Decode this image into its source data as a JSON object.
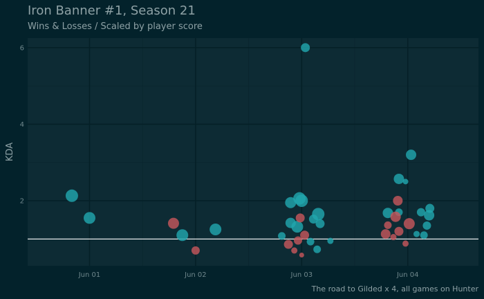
{
  "header": {
    "title": "Iron Banner #1, Season 21",
    "subtitle": "Wins & Losses / Scaled by player score"
  },
  "footer": {
    "caption": "The road to Gilded x 4, all games on Hunter"
  },
  "colors": {
    "background": "#03222b",
    "panel": "#0d2b34",
    "grid_major": "#052027",
    "grid_minor": "#0a262e",
    "win": "#21a6ad",
    "loss": "#c4575b",
    "reference_line": "#ffffff",
    "text": "#8ea1a5"
  },
  "chart_data": {
    "type": "scatter",
    "title": "Iron Banner #1, Season 21",
    "subtitle": "Wins & Losses / Scaled by player score",
    "caption": "The road to Gilded x 4, all games on Hunter",
    "xlabel": "",
    "ylabel": "KDA",
    "x_unit": "date",
    "xlim": [
      "2023-05-31T10:00",
      "2023-06-04T16:00"
    ],
    "ylim": [
      0.3,
      6.25
    ],
    "x_ticks": [
      {
        "label": "Jun 01",
        "value": "2023-06-01T00:00"
      },
      {
        "label": "Jun 02",
        "value": "2023-06-02T00:00"
      },
      {
        "label": "Jun 03",
        "value": "2023-06-03T00:00"
      },
      {
        "label": "Jun 04",
        "value": "2023-06-04T00:00"
      }
    ],
    "y_ticks": [
      2,
      4,
      6
    ],
    "grid": true,
    "reference_line": {
      "y": 1.0
    },
    "series": [
      {
        "key": "win",
        "points": [
          {
            "x": "2023-05-31T20:00",
            "y": 2.13,
            "size": 9
          },
          {
            "x": "2023-06-01T00:00",
            "y": 1.55,
            "size": 8.5
          },
          {
            "x": "2023-06-01T21:00",
            "y": 1.1,
            "size": 8.5
          },
          {
            "x": "2023-06-02T04:30",
            "y": 1.25,
            "size": 8.5
          },
          {
            "x": "2023-06-02T19:30",
            "y": 1.08,
            "size": 5.5
          },
          {
            "x": "2023-06-02T21:30",
            "y": 1.42,
            "size": 7.5
          },
          {
            "x": "2023-06-02T21:30",
            "y": 1.95,
            "size": 8
          },
          {
            "x": "2023-06-02T23:00",
            "y": 1.32,
            "size": 8.5
          },
          {
            "x": "2023-06-02T23:30",
            "y": 2.06,
            "size": 9
          },
          {
            "x": "2023-06-03T00:00",
            "y": 2.0,
            "size": 9
          },
          {
            "x": "2023-06-03T00:50",
            "y": 6.0,
            "size": 6.5
          },
          {
            "x": "2023-06-03T02:00",
            "y": 0.93,
            "size": 5.5
          },
          {
            "x": "2023-06-03T02:40",
            "y": 1.52,
            "size": 6.5
          },
          {
            "x": "2023-06-03T03:30",
            "y": 0.73,
            "size": 5.5
          },
          {
            "x": "2023-06-03T03:45",
            "y": 1.65,
            "size": 9
          },
          {
            "x": "2023-06-03T04:10",
            "y": 1.4,
            "size": 6.5
          },
          {
            "x": "2023-06-03T06:30",
            "y": 0.95,
            "size": 4.5
          },
          {
            "x": "2023-06-03T19:30",
            "y": 1.68,
            "size": 7.5
          },
          {
            "x": "2023-06-03T22:00",
            "y": 2.57,
            "size": 7.5
          },
          {
            "x": "2023-06-03T22:00",
            "y": 1.7,
            "size": 5.5
          },
          {
            "x": "2023-06-03T23:30",
            "y": 2.5,
            "size": 4
          },
          {
            "x": "2023-06-04T00:45",
            "y": 3.2,
            "size": 7.5
          },
          {
            "x": "2023-06-04T02:00",
            "y": 1.13,
            "size": 4.5
          },
          {
            "x": "2023-06-04T03:00",
            "y": 1.7,
            "size": 6
          },
          {
            "x": "2023-06-04T03:40",
            "y": 1.1,
            "size": 5.5
          },
          {
            "x": "2023-06-04T04:20",
            "y": 1.35,
            "size": 6
          },
          {
            "x": "2023-06-04T04:50",
            "y": 1.62,
            "size": 7.5
          },
          {
            "x": "2023-06-04T05:00",
            "y": 1.8,
            "size": 6.5
          }
        ]
      },
      {
        "key": "loss",
        "points": [
          {
            "x": "2023-06-01T19:00",
            "y": 1.41,
            "size": 8
          },
          {
            "x": "2023-06-02T00:00",
            "y": 0.7,
            "size": 6
          },
          {
            "x": "2023-06-02T21:00",
            "y": 0.86,
            "size": 6.5
          },
          {
            "x": "2023-06-02T22:20",
            "y": 0.7,
            "size": 4.5
          },
          {
            "x": "2023-06-02T23:10",
            "y": 0.96,
            "size": 6
          },
          {
            "x": "2023-06-02T23:40",
            "y": 1.55,
            "size": 6.5
          },
          {
            "x": "2023-06-03T00:00",
            "y": 0.58,
            "size": 3.5
          },
          {
            "x": "2023-06-03T00:40",
            "y": 1.1,
            "size": 6.5
          },
          {
            "x": "2023-06-03T19:00",
            "y": 1.13,
            "size": 7
          },
          {
            "x": "2023-06-03T19:30",
            "y": 1.36,
            "size": 5.5
          },
          {
            "x": "2023-06-03T20:45",
            "y": 1.05,
            "size": 4.5
          },
          {
            "x": "2023-06-03T21:15",
            "y": 1.58,
            "size": 7.5
          },
          {
            "x": "2023-06-03T21:45",
            "y": 2.0,
            "size": 7
          },
          {
            "x": "2023-06-03T22:00",
            "y": 1.2,
            "size": 6.5
          },
          {
            "x": "2023-06-03T23:30",
            "y": 0.88,
            "size": 4.5
          },
          {
            "x": "2023-06-04T00:20",
            "y": 1.4,
            "size": 8
          }
        ]
      }
    ]
  }
}
